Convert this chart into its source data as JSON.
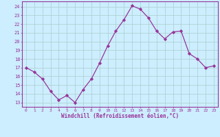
{
  "x": [
    0,
    1,
    2,
    3,
    4,
    5,
    6,
    7,
    8,
    9,
    10,
    11,
    12,
    13,
    14,
    15,
    16,
    17,
    18,
    19,
    20,
    21,
    22,
    23
  ],
  "y": [
    17.0,
    16.5,
    15.7,
    14.3,
    13.3,
    13.8,
    13.0,
    14.5,
    15.7,
    17.5,
    19.5,
    21.2,
    22.5,
    24.1,
    23.7,
    22.7,
    21.2,
    20.3,
    21.1,
    21.2,
    18.6,
    18.0,
    17.0,
    17.2
  ],
  "line_color": "#993399",
  "marker": "D",
  "marker_size": 2.2,
  "bg_color": "#cceeff",
  "grid_color": "#aacccc",
  "xlabel": "Windchill (Refroidissement éolien,°C)",
  "xlabel_color": "#993399",
  "tick_color": "#993399",
  "yticks": [
    13,
    14,
    15,
    16,
    17,
    18,
    19,
    20,
    21,
    22,
    23,
    24
  ],
  "xticks": [
    0,
    1,
    2,
    3,
    4,
    5,
    6,
    7,
    8,
    9,
    10,
    11,
    12,
    13,
    14,
    15,
    16,
    17,
    18,
    19,
    20,
    21,
    22,
    23
  ],
  "ylim": [
    12.5,
    24.6
  ],
  "xlim": [
    -0.5,
    23.5
  ]
}
